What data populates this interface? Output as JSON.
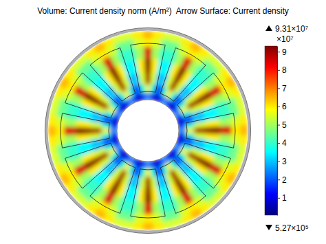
{
  "chart_data": {
    "type": "heatmap",
    "title": "Volume: Current density norm (A/m²)  Arrow Surface: Current density",
    "cells": [
      [
        25000000.0,
        15000000.0,
        8000000.0,
        8000000.0,
        15000000.0,
        25000000.0,
        15000000.0,
        8000000.0,
        8000000.0,
        15000000.0,
        25000000.0,
        15000000.0,
        8000000.0,
        8000000.0,
        15000000.0,
        25000000.0,
        15000000.0,
        8000000.0,
        8000000.0,
        15000000.0,
        25000000.0,
        15000000.0,
        8000000.0,
        8000000.0,
        15000000.0,
        25000000.0,
        15000000.0,
        8000000.0,
        8000000.0,
        15000000.0,
        25000000.0,
        15000000.0,
        8000000.0,
        8000000.0,
        15000000.0,
        25000000.0,
        15000000.0,
        8000000.0,
        8000000.0,
        15000000.0,
        25000000.0,
        15000000.0,
        8000000.0,
        8000000.0,
        15000000.0,
        25000000.0,
        15000000.0,
        8000000.0,
        8000000.0,
        15000000.0,
        25000000.0,
        15000000.0,
        8000000.0,
        8000000.0,
        15000000.0,
        25000000.0,
        15000000.0,
        8000000.0,
        8000000.0,
        15000000.0
      ],
      [
        60000000.0,
        40000000.0,
        20000000.0,
        20000000.0,
        40000000.0,
        60000000.0,
        40000000.0,
        20000000.0,
        20000000.0,
        40000000.0,
        60000000.0,
        40000000.0,
        20000000.0,
        20000000.0,
        40000000.0,
        60000000.0,
        40000000.0,
        20000000.0,
        20000000.0,
        40000000.0,
        60000000.0,
        40000000.0,
        20000000.0,
        20000000.0,
        40000000.0,
        60000000.0,
        40000000.0,
        20000000.0,
        20000000.0,
        40000000.0,
        60000000.0,
        40000000.0,
        20000000.0,
        20000000.0,
        40000000.0,
        60000000.0,
        40000000.0,
        20000000.0,
        20000000.0,
        40000000.0,
        60000000.0,
        40000000.0,
        20000000.0,
        20000000.0,
        40000000.0,
        60000000.0,
        40000000.0,
        20000000.0,
        20000000.0,
        40000000.0,
        60000000.0,
        40000000.0,
        20000000.0,
        20000000.0,
        40000000.0,
        60000000.0,
        40000000.0,
        20000000.0,
        20000000.0,
        40000000.0
      ],
      [
        90000000.0,
        55000000.0,
        30000000.0,
        30000000.0,
        55000000.0,
        90000000.0,
        55000000.0,
        30000000.0,
        30000000.0,
        55000000.0,
        90000000.0,
        55000000.0,
        30000000.0,
        30000000.0,
        55000000.0,
        90000000.0,
        55000000.0,
        30000000.0,
        30000000.0,
        55000000.0,
        90000000.0,
        55000000.0,
        30000000.0,
        30000000.0,
        55000000.0,
        90000000.0,
        55000000.0,
        30000000.0,
        30000000.0,
        55000000.0,
        90000000.0,
        55000000.0,
        30000000.0,
        30000000.0,
        55000000.0,
        90000000.0,
        55000000.0,
        30000000.0,
        30000000.0,
        55000000.0,
        90000000.0,
        55000000.0,
        30000000.0,
        30000000.0,
        55000000.0,
        90000000.0,
        55000000.0,
        30000000.0,
        30000000.0,
        55000000.0,
        90000000.0,
        55000000.0,
        30000000.0,
        30000000.0,
        55000000.0,
        90000000.0,
        55000000.0,
        30000000.0,
        30000000.0,
        55000000.0
      ],
      [
        93000000.0,
        60000000.0,
        35000000.0,
        35000000.0,
        60000000.0,
        93000000.0,
        60000000.0,
        35000000.0,
        35000000.0,
        60000000.0,
        93000000.0,
        60000000.0,
        35000000.0,
        35000000.0,
        60000000.0,
        93000000.0,
        60000000.0,
        35000000.0,
        35000000.0,
        60000000.0,
        93000000.0,
        60000000.0,
        35000000.0,
        35000000.0,
        60000000.0,
        93000000.0,
        60000000.0,
        35000000.0,
        35000000.0,
        60000000.0,
        93000000.0,
        60000000.0,
        35000000.0,
        35000000.0,
        60000000.0,
        93000000.0,
        60000000.0,
        35000000.0,
        35000000.0,
        60000000.0,
        93000000.0,
        60000000.0,
        35000000.0,
        35000000.0,
        60000000.0,
        93000000.0,
        60000000.0,
        35000000.0,
        35000000.0,
        60000000.0,
        93000000.0,
        60000000.0,
        35000000.0,
        35000000.0,
        60000000.0,
        93000000.0,
        60000000.0,
        35000000.0,
        35000000.0,
        60000000.0
      ],
      [
        85000000.0,
        50000000.0,
        40000000.0,
        40000000.0,
        50000000.0,
        85000000.0,
        50000000.0,
        40000000.0,
        40000000.0,
        50000000.0,
        85000000.0,
        50000000.0,
        40000000.0,
        40000000.0,
        50000000.0,
        85000000.0,
        50000000.0,
        40000000.0,
        40000000.0,
        50000000.0,
        85000000.0,
        50000000.0,
        40000000.0,
        40000000.0,
        50000000.0,
        85000000.0,
        50000000.0,
        40000000.0,
        40000000.0,
        50000000.0,
        85000000.0,
        50000000.0,
        40000000.0,
        40000000.0,
        50000000.0,
        85000000.0,
        50000000.0,
        40000000.0,
        40000000.0,
        50000000.0,
        85000000.0,
        50000000.0,
        40000000.0,
        40000000.0,
        50000000.0,
        85000000.0,
        50000000.0,
        40000000.0,
        40000000.0,
        50000000.0,
        85000000.0,
        50000000.0,
        40000000.0,
        40000000.0,
        50000000.0,
        85000000.0,
        50000000.0,
        40000000.0,
        40000000.0,
        50000000.0
      ],
      [
        60000000.0,
        55000000.0,
        45000000.0,
        45000000.0,
        55000000.0,
        60000000.0,
        55000000.0,
        45000000.0,
        45000000.0,
        55000000.0,
        60000000.0,
        55000000.0,
        45000000.0,
        45000000.0,
        55000000.0,
        60000000.0,
        55000000.0,
        45000000.0,
        45000000.0,
        55000000.0,
        60000000.0,
        55000000.0,
        45000000.0,
        45000000.0,
        55000000.0,
        60000000.0,
        55000000.0,
        45000000.0,
        45000000.0,
        55000000.0,
        60000000.0,
        55000000.0,
        45000000.0,
        45000000.0,
        55000000.0,
        60000000.0,
        55000000.0,
        45000000.0,
        45000000.0,
        55000000.0,
        60000000.0,
        55000000.0,
        45000000.0,
        45000000.0,
        55000000.0,
        60000000.0,
        55000000.0,
        45000000.0,
        45000000.0,
        55000000.0,
        60000000.0,
        55000000.0,
        45000000.0,
        45000000.0,
        55000000.0,
        60000000.0,
        55000000.0,
        45000000.0,
        45000000.0,
        55000000.0
      ],
      [
        65000000.0,
        60000000.0,
        55000000.0,
        55000000.0,
        60000000.0,
        65000000.0,
        60000000.0,
        55000000.0,
        55000000.0,
        60000000.0,
        65000000.0,
        60000000.0,
        55000000.0,
        55000000.0,
        60000000.0,
        65000000.0,
        60000000.0,
        55000000.0,
        55000000.0,
        60000000.0,
        65000000.0,
        60000000.0,
        55000000.0,
        55000000.0,
        60000000.0,
        65000000.0,
        60000000.0,
        55000000.0,
        55000000.0,
        60000000.0,
        65000000.0,
        60000000.0,
        55000000.0,
        55000000.0,
        60000000.0,
        65000000.0,
        60000000.0,
        55000000.0,
        55000000.0,
        60000000.0,
        65000000.0,
        60000000.0,
        55000000.0,
        55000000.0,
        60000000.0,
        65000000.0,
        60000000.0,
        55000000.0,
        55000000.0,
        60000000.0,
        65000000.0,
        60000000.0,
        55000000.0,
        55000000.0,
        60000000.0,
        65000000.0,
        60000000.0,
        55000000.0,
        55000000.0,
        60000000.0
      ]
    ],
    "colorbar": {
      "range": [
        527000,
        93100000
      ],
      "range_labels": [
        "5.27×10⁵",
        "9.31×10⁷"
      ],
      "multiplier": "×10⁷",
      "ticks": [
        {
          "value": 10000000,
          "label": "1"
        },
        {
          "value": 20000000,
          "label": "2"
        },
        {
          "value": 30000000,
          "label": "3"
        },
        {
          "value": 40000000,
          "label": "4"
        },
        {
          "value": 50000000,
          "label": "5"
        },
        {
          "value": 60000000,
          "label": "6"
        },
        {
          "value": 70000000,
          "label": "7"
        },
        {
          "value": 80000000,
          "label": "8"
        },
        {
          "value": 90000000,
          "label": "9"
        }
      ]
    }
  }
}
